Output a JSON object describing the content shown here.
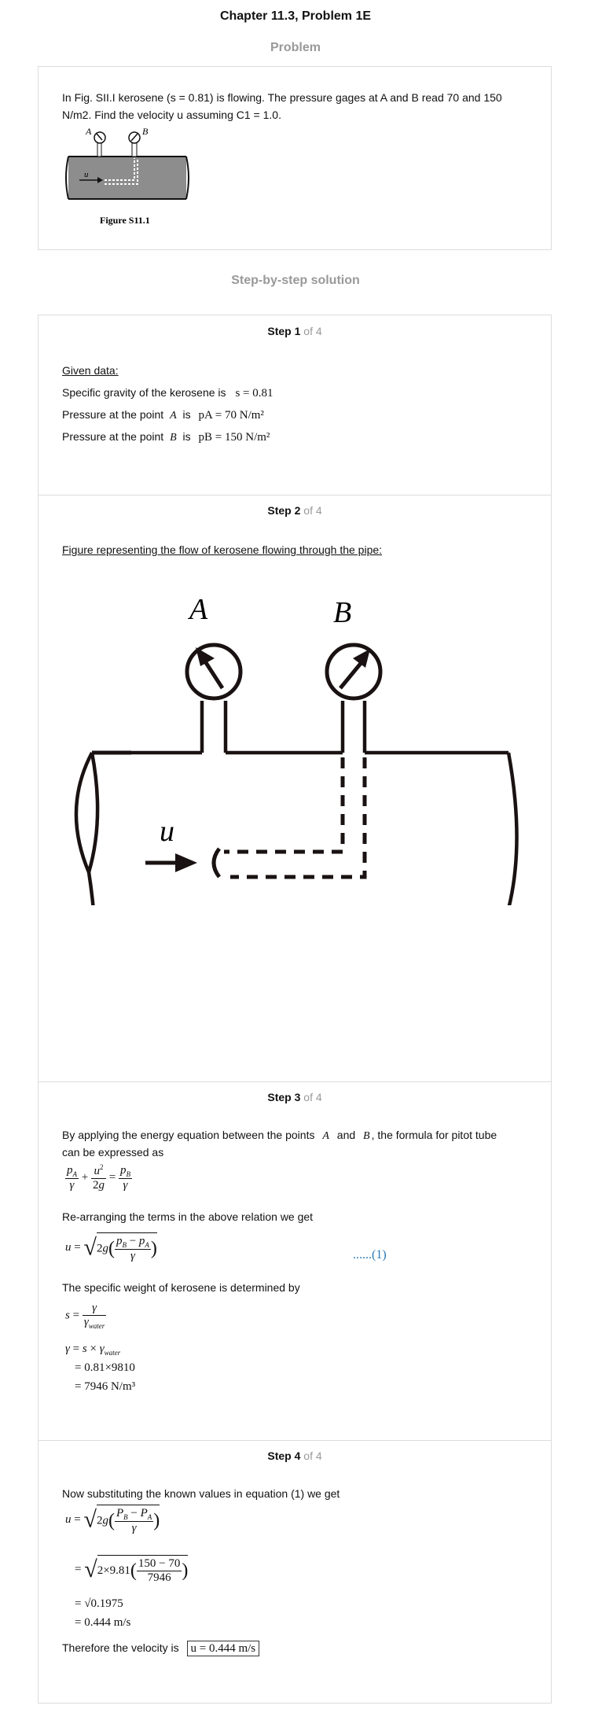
{
  "chapter_title": "Chapter 11.3, Problem 1E",
  "problem_heading": "Problem",
  "problem_text": "In Fig. SII.I kerosene (s = 0.81) is flowing. The pressure gages at A and B read 70 and 150 N/m2. Find the velocity u assuming C1 = 1.0.",
  "figure_caption": "Figure S11.1",
  "figure_labels": {
    "a": "A",
    "b": "B",
    "u": "u"
  },
  "solution_heading": "Step-by-step solution",
  "step_word": "Step",
  "of_total": "of 4",
  "step1": {
    "num": "1",
    "given": "Given data:",
    "sg_label": "Specific gravity of the kerosene is",
    "sg_value": "s = 0.81",
    "pa_label": "Pressure at the point",
    "pa_point": "A",
    "is": "is",
    "pa_value": "pA = 70  N/m²",
    "pb_label": "Pressure at the point",
    "pb_point": "B",
    "pb_value": "pB = 150  N/m²"
  },
  "step2": {
    "num": "2",
    "caption": "Figure representing the flow of kerosene flowing through the pipe:"
  },
  "step3": {
    "num": "3",
    "intro_a": "By applying the energy equation between the points",
    "point_a": "A",
    "and": "and",
    "point_b": "B",
    "intro_b": ", the formula for pitot tube",
    "intro_c": "can be expressed as",
    "rearrange": "Re-arranging the terms in the above relation we get",
    "eq_ref": "......(1)",
    "sw_text": "The specific weight of kerosene is determined by",
    "calc1": "= 0.81×9810",
    "calc2": "= 7946  N/m³"
  },
  "step4": {
    "num": "4",
    "intro": "Now substituting the known values in equation (1) we get",
    "line3": "= √0.1975",
    "line4": "= 0.444  m/s",
    "therefore": "Therefore the velocity is",
    "answer": "u = 0.444  m/s"
  }
}
